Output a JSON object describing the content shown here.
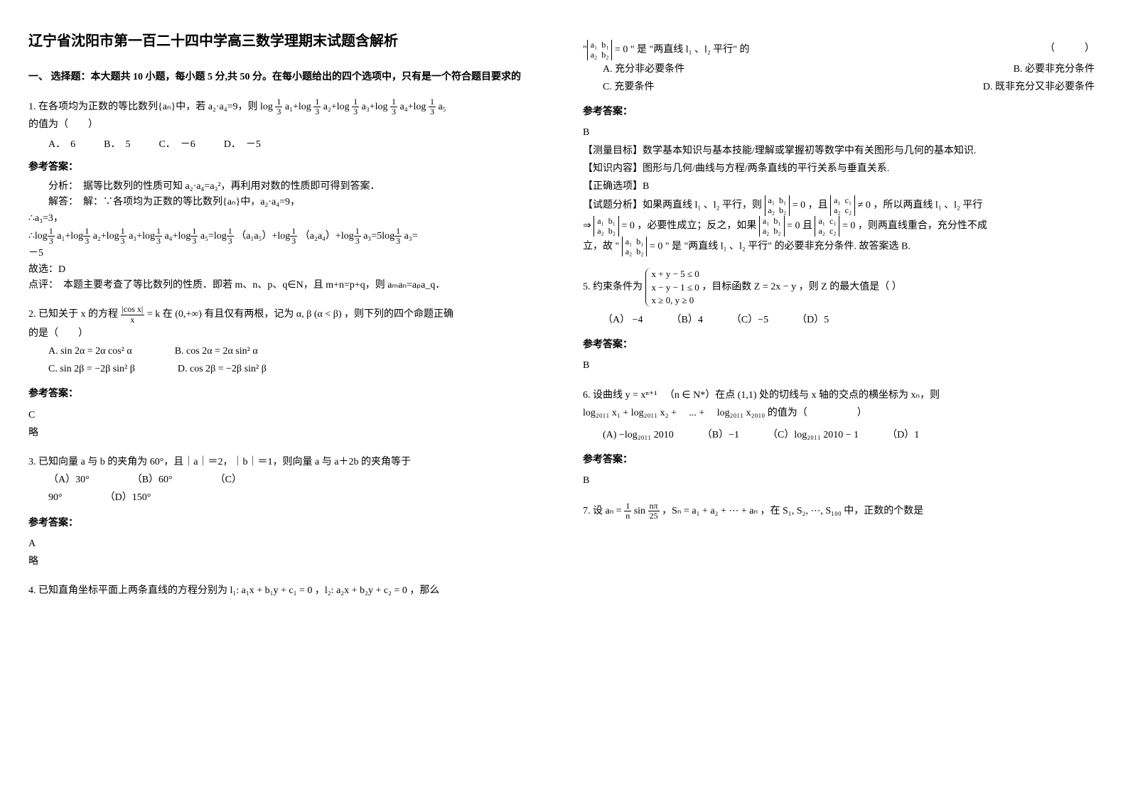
{
  "title": "辽宁省沈阳市第一百二十四中学高三数学理期末试题含解析",
  "section1": "一、 选择题：本大题共 10 小题，每小题 5 分,共 50 分。在每小题给出的四个选项中，只有是一个符合题目要求的",
  "q1": {
    "stem_a": "1. 在各项均为正数的等比数列{aₙ}中，若 a₂·a₄=9，则 log",
    "stem_b": "a₁+log",
    "stem_c": "a₂+log",
    "stem_d": "a₃+log",
    "stem_e": "a₄+log",
    "stem_f": "a₅",
    "stem_tail": "的值为（　　）",
    "opts": {
      "A": "A．　6",
      "B": "B．　5",
      "C": "C．　－6",
      "D": "D．　－5"
    },
    "ans_label": "参考答案：",
    "analysis_l1": "分析：　据等比数列的性质可知 a₂·a₄=a₃²，再利用对数的性质即可得到答案．",
    "analysis_l2": "解答：　解：∵各项均为正数的等比数列{aₙ}中，a₂·a₄=9，",
    "analysis_l3": "∴a₃=3，",
    "analysis_l4a": "∴log",
    "analysis_l4b": "a₁+log",
    "analysis_l4c": "a₂+log",
    "analysis_l4d": "a₃+log",
    "analysis_l4e": "a₄+log",
    "analysis_l4f": "a₅=log",
    "analysis_l4g": "（a₁a₅）+log",
    "analysis_l4h": "（a₂a₄）+log",
    "analysis_l4i": "a₃=5log",
    "analysis_l4j": "a₃=",
    "analysis_l5": "－5",
    "analysis_l6": "故选：D",
    "analysis_l7": "点评：　本题主要考查了等比数列的性质．即若 m、n、p、q∈N，且 m+n=p+q，则 aₘaₙ=aₚa_q．"
  },
  "q2": {
    "stem_a": "2. 已知关于 x 的方程 ",
    "stem_b": " 在 (0,+∞) 有且仅有两根，记为 α, β (α < β) ，则下列的四个命题正确",
    "stem_tail": "的是（　　）",
    "optA": "A.  sin 2α = 2α cos² α",
    "optB": "B.  cos 2α = 2α sin² α",
    "optC": "C.  sin 2β = −2β sin² β",
    "optD": "D.  cos 2β = −2β sin² β",
    "ans_label": "参考答案：",
    "ans": "C",
    "note": "略"
  },
  "q3": {
    "stem": "3. 已知向量 a 与 b 的夹角为 60°，且｜a｜＝2，｜b｜＝1，则向量 a 与 a＋2b 的夹角等于",
    "optA": "（A）30°",
    "optB": "（B）60°",
    "optC": "（C）",
    "optC2": "90°",
    "optD": "（D）150°",
    "ans_label": "参考答案：",
    "ans": "A",
    "note": "略"
  },
  "q4": {
    "stem_a": "4. 已知直角坐标平面上两条直线的方程分别为 l₁: a₁x + b₁y + c₁ = 0 ，l₂: a₂x + b₂y + c₂ = 0 ，那么",
    "stem_b": "\" 是 \"两直线 l₁ 、l₂ 平行\" 的",
    "paren": "（　　　）",
    "optA": "A. 充分非必要条件",
    "optB": "B. 必要非充分条件",
    "optC": "C. 充要条件",
    "optD": "D. 既非充分又非必要条件",
    "ans_label": "参考答案：",
    "ans": "B",
    "goal": "【测量目标】数学基本知识与基本技能/理解或掌握初等数学中有关图形与几何的基本知识.",
    "content": "【知识内容】图形与几何/曲线与方程/两条直线的平行关系与垂直关系.",
    "correct": "【正确选项】B",
    "ana1a": "【试题分析】如果两直线 l₁ 、l₂ 平行，则",
    "ana1b": "，且",
    "ana1c": "，所以两直线 l₁ 、l₂ 平行",
    "ana2a": "⇒",
    "ana2b": "，必要性成立；反之，如果",
    "ana2c": " 且 ",
    "ana2d": "，则两直线重合，充分性不成",
    "ana3a": "立，故 \"",
    "ana3b": "\" 是 \"两直线 l₁ 、l₂ 平行\" 的必要非充分条件. 故答案选 B."
  },
  "q5": {
    "stem_a": "5. 约束条件为 ",
    "stem_b": " ，目标函数 Z = 2x − y ，则 Z 的最大值是（  ）",
    "brace1": "x + y − 5 ≤ 0",
    "brace2": "x − y − 1 ≤ 0",
    "brace3": "x ≥ 0, y ≥ 0",
    "optA": "（A） −4",
    "optB": "（B）4",
    "optC": "（C）−5",
    "optD": "（D）5",
    "ans_label": "参考答案：",
    "ans": "B"
  },
  "q6": {
    "stem_a": "6. 设曲线 y = xⁿ⁺¹ 　（n ∈ N*）在点 (1,1) 处的切线与 x 轴的交点的横坐标为 xₙ，则",
    "stem_b": "log₂₀₁₁ x₁ + log₂₀₁₁ x₂ + 　... + 　log₂₀₁₁ x₂₀₁₀ 的值为（　　　　　）",
    "optA": "(A) −log₂₀₁₁ 2010",
    "optB": "（B）−1",
    "optC": "（C）log₂₀₁₁ 2010 − 1",
    "optD": "（D）1",
    "ans_label": "参考答案：",
    "ans": "B"
  },
  "q7": {
    "stem_a": "7. 设 ",
    "stem_b": " ，Sₙ = a₁ + a₂ + ⋯ + aₙ ，在 S₁, S₂, ⋯, S₁₀₀ 中，正数的个数是"
  }
}
